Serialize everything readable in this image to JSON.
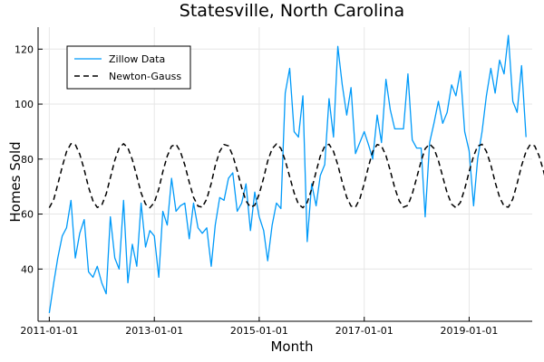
{
  "chart_data": {
    "type": "line",
    "title": "Statesville, North Carolina",
    "xlabel": "Month",
    "ylabel": "Homes Sold",
    "x_start": "2011-01-01",
    "x_end": "2019-12-01",
    "xlim": [
      "2010-10-15",
      "2020-03-15"
    ],
    "ylim": [
      21,
      128
    ],
    "x_ticks": [
      "2011-01-01",
      "2013-01-01",
      "2015-01-01",
      "2017-01-01",
      "2019-01-01"
    ],
    "y_ticks": [
      40,
      60,
      80,
      100,
      120
    ],
    "grid": true,
    "legend": "top-left",
    "series": [
      {
        "name": "Zillow Data",
        "color": "#009af9",
        "style": "solid",
        "values": [
          24,
          35,
          44,
          52,
          55,
          65,
          44,
          53,
          58,
          39,
          37,
          41,
          35,
          31,
          59,
          44,
          40,
          65,
          35,
          49,
          41,
          64,
          48,
          54,
          52,
          37,
          61,
          56,
          73,
          61,
          63,
          64,
          51,
          64,
          55,
          53,
          55,
          41,
          56,
          66,
          65,
          73,
          75,
          61,
          64,
          71,
          54,
          68,
          59,
          54,
          43,
          56,
          64,
          62,
          104,
          113,
          90,
          88,
          103,
          50,
          71,
          63,
          74,
          78,
          102,
          88,
          121,
          107,
          96,
          106,
          82,
          86,
          90,
          85,
          80,
          96,
          86,
          109,
          98,
          91,
          91,
          91,
          111,
          87,
          84,
          84,
          59,
          86,
          93,
          101,
          93,
          97,
          107,
          103,
          112,
          90,
          83,
          63,
          80,
          90,
          103,
          113,
          104,
          116,
          111,
          125,
          101,
          97,
          114,
          88
        ]
      },
      {
        "name": "Newton-Gauss",
        "color": "#000000",
        "style": "dashed",
        "values": [
          62.3,
          65.3,
          70.8,
          77.2,
          82.7,
          85.6,
          85.3,
          81.8,
          76.2,
          69.8,
          64.8,
          62.4,
          63.2,
          67.3,
          73.2,
          79.6,
          84.0,
          85.6,
          84.1,
          79.8,
          73.8,
          67.7,
          63.6,
          62.3,
          64.2,
          69.1,
          75.4,
          81.1,
          84.7,
          85.4,
          82.8,
          77.9,
          71.6,
          66.1,
          62.9,
          62.5,
          65.5,
          71.1,
          77.6,
          82.8,
          85.3,
          84.8,
          81.3,
          75.8,
          69.6,
          64.8,
          62.5,
          63.2,
          67.3,
          73.2,
          79.3,
          83.8,
          85.5,
          83.9,
          79.5,
          73.6,
          67.7,
          63.6,
          62.3,
          64.2,
          69.1,
          75.4,
          81.1,
          84.7,
          85.4,
          82.8,
          77.9,
          71.6,
          66.1,
          62.9,
          62.5,
          65.5,
          71.1,
          77.6,
          82.8,
          85.3,
          84.8,
          81.3,
          75.8,
          69.6,
          64.8,
          62.5,
          63.2,
          67.3,
          73.2,
          79.3,
          83.8,
          85.5,
          83.9,
          79.5,
          73.6,
          67.7,
          63.6,
          62.3,
          64.2,
          69.1,
          75.4,
          81.1,
          84.7,
          85.4,
          82.8,
          77.9,
          71.6,
          66.1,
          62.9,
          62.5,
          65.5,
          71.1,
          77.6,
          82.8,
          85.3,
          84.8,
          81.3,
          75.8,
          69.6,
          64.8,
          62.5,
          63.2,
          67.3,
          73.2
        ]
      }
    ]
  }
}
